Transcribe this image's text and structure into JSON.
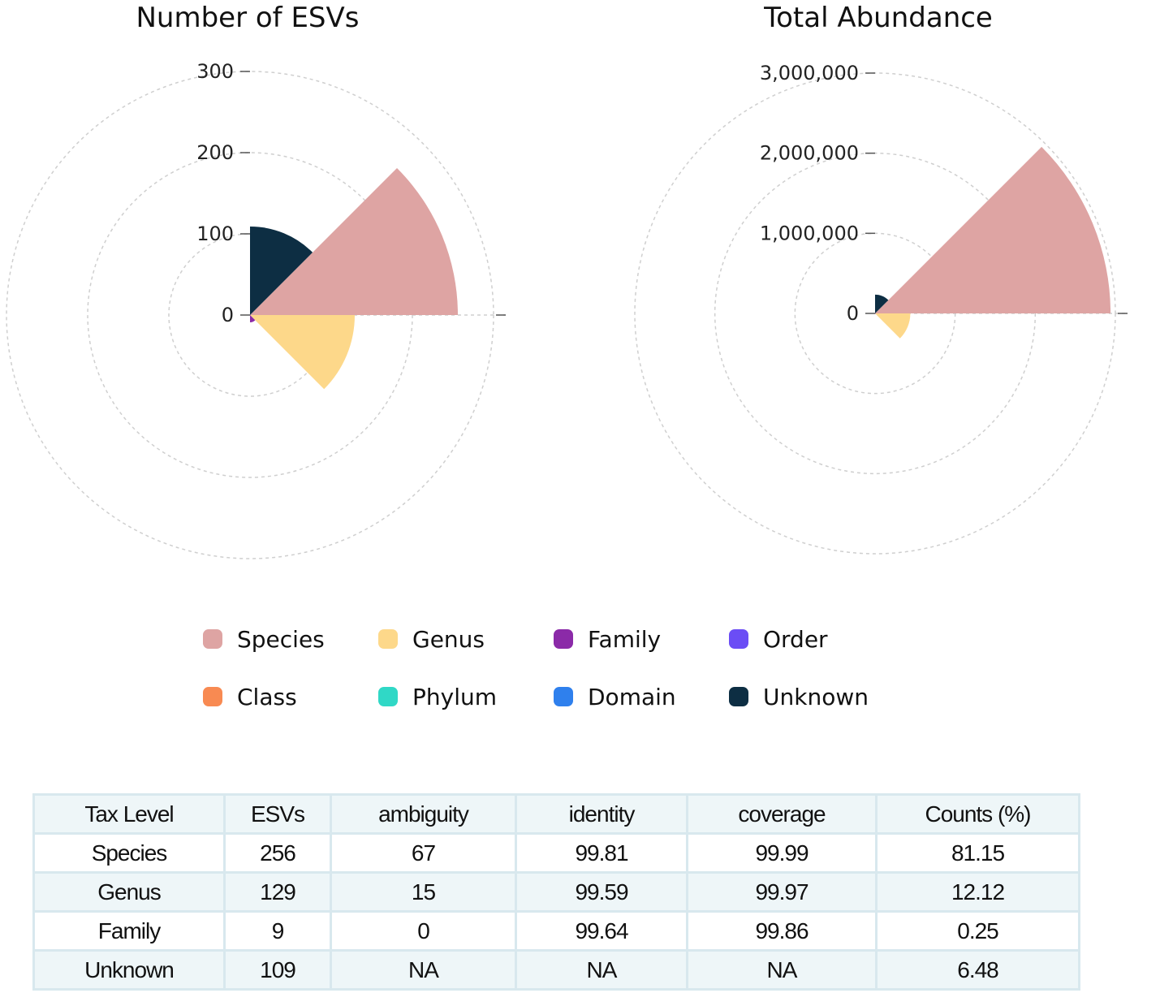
{
  "colors": {
    "Species": "#dea4a3",
    "Genus": "#fdd88a",
    "Family": "#8b2aa8",
    "Order": "#6b4df5",
    "Class": "#f88a52",
    "Phylum": "#30d8c6",
    "Domain": "#2f80ed",
    "Unknown": "#0d2e43"
  },
  "chart_data": [
    {
      "type": "polar-bar",
      "title": "Number of ESVs",
      "categories": [
        "Species",
        "Genus",
        "Family",
        "Order",
        "Class",
        "Phylum",
        "Domain",
        "Unknown"
      ],
      "values": [
        256,
        129,
        9,
        0,
        0,
        0,
        0,
        109
      ],
      "rmax": 300,
      "ticks": [
        0,
        100,
        200,
        300
      ],
      "tick_labels": [
        "0",
        "100",
        "200",
        "300"
      ]
    },
    {
      "type": "polar-bar",
      "title": "Total Abundance",
      "categories": [
        "Species",
        "Genus",
        "Family",
        "Order",
        "Class",
        "Phylum",
        "Domain",
        "Unknown"
      ],
      "values": [
        2940000,
        440000,
        9000,
        0,
        0,
        0,
        0,
        235000
      ],
      "rmax": 3000000,
      "ticks": [
        0,
        1000000,
        2000000,
        3000000
      ],
      "tick_labels": [
        "0",
        "1,000,000",
        "2,000,000",
        "3,000,000"
      ]
    }
  ],
  "legend": {
    "items": [
      {
        "label": "Species",
        "key": "Species"
      },
      {
        "label": "Genus",
        "key": "Genus"
      },
      {
        "label": "Family",
        "key": "Family"
      },
      {
        "label": "Order",
        "key": "Order"
      },
      {
        "label": "Class",
        "key": "Class"
      },
      {
        "label": "Phylum",
        "key": "Phylum"
      },
      {
        "label": "Domain",
        "key": "Domain"
      },
      {
        "label": "Unknown",
        "key": "Unknown"
      }
    ]
  },
  "table": {
    "headers": [
      "Tax Level",
      "ESVs",
      "ambiguity",
      "identity",
      "coverage",
      "Counts (%)"
    ],
    "rows": [
      [
        "Species",
        "256",
        "67",
        "99.81",
        "99.99",
        "81.15"
      ],
      [
        "Genus",
        "129",
        "15",
        "99.59",
        "99.97",
        "12.12"
      ],
      [
        "Family",
        "9",
        "0",
        "99.64",
        "99.86",
        "0.25"
      ],
      [
        "Unknown",
        "109",
        "NA",
        "NA",
        "NA",
        "6.48"
      ]
    ]
  }
}
